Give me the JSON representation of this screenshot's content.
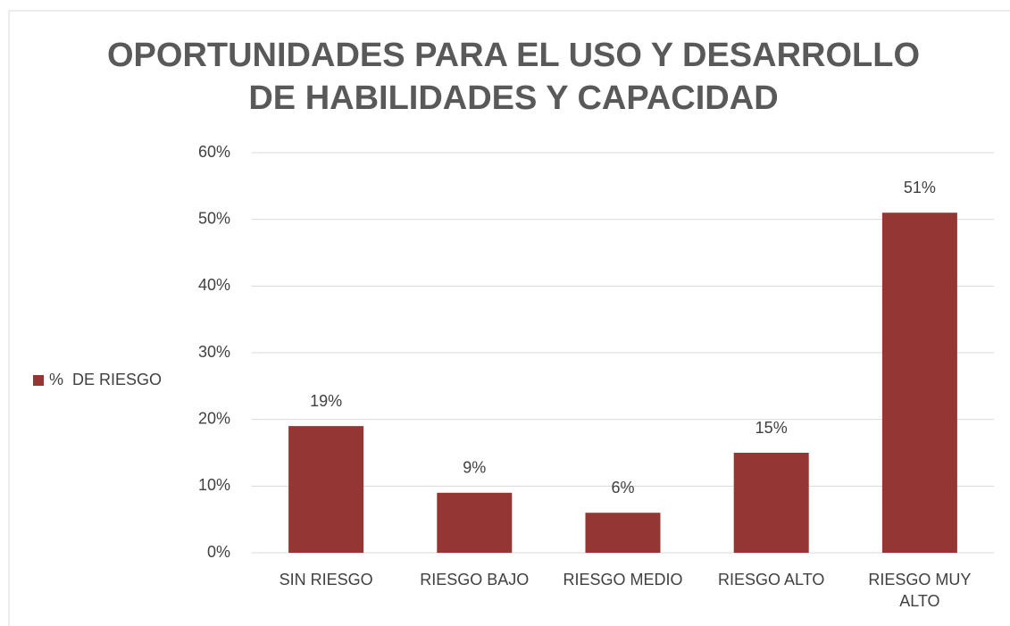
{
  "chart_data": {
    "type": "bar",
    "title": "OPORTUNIDADES PARA EL USO Y DESARROLLO DE HABILIDADES Y CAPACIDAD",
    "categories": [
      "SIN RIESGO",
      "RIESGO BAJO",
      "RIESGO MEDIO",
      "RIESGO ALTO",
      "RIESGO MUY ALTO"
    ],
    "series": [
      {
        "name": "%  DE RIESGO",
        "color": "#943634",
        "values": [
          19,
          9,
          6,
          15,
          51
        ],
        "value_labels": [
          "19%",
          "9%",
          "6%",
          "15%",
          "51%"
        ]
      }
    ],
    "ylim": [
      0,
      60
    ],
    "yticks": [
      {
        "value": 0,
        "label": "0%"
      },
      {
        "value": 10,
        "label": "10%"
      },
      {
        "value": 20,
        "label": "20%"
      },
      {
        "value": 30,
        "label": "30%"
      },
      {
        "value": 40,
        "label": "40%"
      },
      {
        "value": 50,
        "label": "50%"
      },
      {
        "value": 60,
        "label": "60%"
      }
    ],
    "grid": true,
    "legend": "left"
  }
}
